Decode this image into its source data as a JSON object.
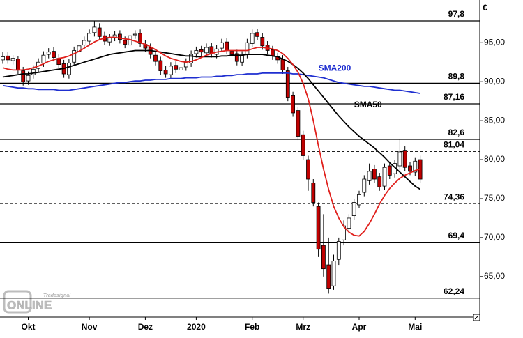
{
  "chart_data": {
    "type": "candlestick",
    "currency": "€",
    "logo": {
      "brand": "Tradesignal",
      "name": "ONLINE"
    },
    "categories": [
      null,
      null,
      null,
      null,
      null,
      "Okt",
      null,
      null,
      null,
      null,
      null,
      null,
      null,
      null,
      null,
      null,
      null,
      "Nov",
      null,
      null,
      null,
      null,
      null,
      null,
      null,
      null,
      null,
      null,
      "Dez",
      null,
      null,
      null,
      null,
      null,
      null,
      null,
      null,
      null,
      "2020",
      null,
      null,
      null,
      null,
      null,
      null,
      null,
      null,
      null,
      null,
      "Feb",
      null,
      null,
      null,
      null,
      null,
      null,
      null,
      null,
      null,
      "Mrz",
      null,
      null,
      null,
      null,
      null,
      null,
      null,
      null,
      null,
      null,
      "Apr",
      null,
      null,
      null,
      null,
      null,
      null,
      null,
      null,
      null,
      null,
      "Mai",
      null
    ],
    "candles": {
      "up_color": "#ffffff",
      "down_color": "#c00000",
      "open": [
        92.8,
        93.3,
        92.7,
        92.9,
        91.4,
        90.1,
        90.9,
        91.7,
        92.4,
        93.5,
        93.9,
        93.0,
        92.3,
        90.9,
        92.5,
        93.9,
        94.7,
        95.2,
        96.3,
        96.9,
        95.9,
        95.1,
        95.7,
        96.1,
        95.3,
        94.7,
        96.0,
        96.2,
        94.8,
        94.4,
        93.4,
        92.7,
        91.5,
        90.9,
        92.1,
        91.5,
        91.9,
        92.4,
        93.6,
        94.1,
        93.7,
        94.5,
        93.5,
        94.3,
        95.1,
        93.9,
        93.6,
        92.5,
        93.5,
        94.9,
        96.3,
        95.7,
        94.7,
        94.1,
        93.2,
        92.9,
        91.4,
        88.2,
        86.3,
        83.2,
        80.0,
        77.0,
        74.0,
        69.0,
        66.5,
        63.8,
        67.2,
        69.7,
        71.2,
        72.8,
        74.2,
        75.8,
        77.3,
        78.8,
        77.8,
        76.6,
        79.2,
        78.2,
        79.2,
        81.2,
        79.2,
        78.4,
        80.0
      ],
      "high": [
        93.8,
        93.8,
        93.4,
        93.3,
        91.9,
        91.3,
        92.1,
        93.0,
        93.9,
        94.3,
        94.4,
        93.5,
        92.8,
        92.9,
        94.5,
        95.1,
        95.8,
        96.7,
        97.8,
        97.5,
        96.4,
        96.1,
        96.5,
        96.6,
        95.8,
        96.4,
        96.6,
        96.7,
        95.3,
        94.9,
        93.9,
        93.2,
        92.0,
        92.5,
        92.6,
        92.3,
        93.0,
        94.0,
        94.5,
        94.6,
        94.9,
        95.0,
        94.7,
        95.5,
        95.6,
        94.4,
        94.1,
        93.9,
        95.5,
        96.7,
        96.8,
        96.2,
        95.2,
        94.6,
        93.7,
        93.4,
        91.9,
        88.7,
        86.8,
        83.7,
        80.5,
        77.5,
        74.5,
        73.0,
        70.0,
        67.8,
        70.0,
        72.2,
        73.0,
        75.0,
        76.0,
        78.0,
        79.5,
        79.3,
        78.3,
        79.5,
        79.7,
        80.0,
        82.6,
        81.7,
        79.7,
        80.3,
        80.5
      ],
      "low": [
        92.3,
        92.3,
        92.2,
        91.0,
        89.5,
        89.6,
        90.4,
        91.2,
        91.9,
        93.0,
        92.6,
        91.7,
        90.5,
        90.4,
        92.0,
        93.4,
        94.2,
        94.7,
        95.8,
        95.3,
        94.7,
        94.6,
        95.2,
        94.9,
        94.3,
        94.2,
        95.5,
        94.4,
        93.8,
        93.0,
        92.1,
        90.9,
        90.5,
        90.4,
        91.1,
        91.0,
        91.4,
        91.9,
        93.1,
        93.3,
        93.2,
        93.1,
        93.0,
        93.8,
        93.5,
        93.0,
        92.1,
        92.0,
        93.0,
        94.4,
        95.3,
        94.1,
        93.5,
        92.8,
        92.3,
        91.0,
        87.5,
        85.5,
        82.5,
        80.0,
        76.0,
        74.0,
        67.5,
        65.0,
        62.8,
        63.3,
        66.5,
        69.0,
        70.5,
        72.3,
        73.8,
        75.3,
        76.8,
        77.0,
        76.0,
        76.1,
        77.5,
        77.7,
        78.7,
        78.5,
        78.0,
        77.9,
        77.0
      ],
      "close": [
        93.2,
        92.8,
        93.0,
        91.5,
        90.0,
        90.8,
        91.6,
        92.5,
        93.4,
        93.8,
        93.1,
        92.2,
        91.0,
        92.4,
        94.0,
        94.6,
        95.3,
        96.2,
        97.0,
        95.8,
        95.2,
        95.6,
        96.0,
        95.4,
        94.8,
        95.9,
        96.1,
        94.9,
        94.3,
        93.5,
        92.6,
        91.4,
        91.0,
        92.0,
        91.6,
        91.8,
        92.5,
        93.5,
        94.0,
        93.8,
        94.4,
        93.6,
        94.2,
        95.0,
        94.0,
        93.5,
        92.6,
        93.4,
        95.0,
        96.2,
        95.8,
        94.6,
        94.0,
        93.3,
        92.8,
        91.5,
        88.0,
        86.0,
        83.0,
        80.5,
        77.5,
        74.5,
        68.5,
        66.0,
        63.5,
        67.0,
        69.5,
        71.5,
        72.5,
        74.5,
        75.5,
        77.5,
        78.5,
        77.5,
        76.5,
        79.0,
        78.0,
        79.5,
        81.0,
        79.0,
        78.5,
        79.8,
        77.5
      ]
    },
    "overlays": [
      {
        "name": "SMA200",
        "color": "#1f2fd0",
        "values": [
          89.5,
          89.4,
          89.3,
          89.2,
          89.2,
          89.1,
          89.1,
          89.0,
          89.0,
          89.0,
          89.0,
          88.9,
          88.9,
          88.9,
          89.0,
          89.1,
          89.2,
          89.3,
          89.4,
          89.5,
          89.6,
          89.7,
          89.8,
          89.9,
          89.9,
          90.0,
          90.1,
          90.1,
          90.2,
          90.2,
          90.3,
          90.3,
          90.3,
          90.4,
          90.4,
          90.4,
          90.5,
          90.5,
          90.5,
          90.6,
          90.6,
          90.6,
          90.7,
          90.7,
          90.8,
          90.8,
          90.9,
          90.9,
          91.0,
          91.0,
          91.0,
          91.1,
          91.1,
          91.1,
          91.1,
          91.1,
          91.1,
          91.0,
          91.0,
          90.9,
          90.8,
          90.7,
          90.6,
          90.5,
          90.3,
          90.1,
          89.9,
          89.8,
          89.7,
          89.6,
          89.5,
          89.4,
          89.4,
          89.3,
          89.2,
          89.1,
          89.0,
          88.9,
          88.9,
          88.8,
          88.7,
          88.6,
          88.5
        ]
      },
      {
        "name": "SMA50",
        "color": "#000000",
        "values": [
          90.6,
          90.7,
          90.8,
          90.9,
          91.0,
          91.0,
          91.1,
          91.2,
          91.3,
          91.4,
          91.5,
          91.6,
          91.7,
          91.9,
          92.1,
          92.3,
          92.5,
          92.7,
          92.9,
          93.1,
          93.3,
          93.5,
          93.6,
          93.7,
          93.8,
          93.9,
          94.0,
          94.0,
          94.0,
          94.0,
          93.9,
          93.8,
          93.7,
          93.6,
          93.5,
          93.4,
          93.3,
          93.3,
          93.2,
          93.2,
          93.2,
          93.2,
          93.2,
          93.3,
          93.3,
          93.4,
          93.4,
          93.4,
          93.5,
          93.5,
          93.5,
          93.5,
          93.4,
          93.3,
          93.2,
          92.9,
          92.6,
          92.2,
          91.7,
          91.1,
          90.4,
          89.6,
          88.8,
          88.0,
          87.2,
          86.4,
          85.6,
          84.9,
          84.2,
          83.6,
          83.0,
          82.5,
          82.0,
          81.5,
          80.9,
          80.3,
          79.6,
          79.0,
          78.4,
          77.8,
          77.2,
          76.6,
          76.2
        ]
      },
      {
        "color": "#e0201c",
        "values": [
          91.8,
          91.6,
          91.5,
          91.5,
          91.5,
          91.6,
          91.8,
          92.0,
          92.3,
          92.6,
          92.8,
          93.0,
          93.1,
          93.3,
          93.6,
          93.9,
          94.3,
          94.7,
          95.1,
          95.4,
          95.6,
          95.7,
          95.7,
          95.6,
          95.5,
          95.4,
          95.2,
          95.0,
          94.8,
          94.5,
          94.1,
          93.7,
          93.3,
          93.0,
          92.8,
          92.6,
          92.5,
          92.6,
          92.8,
          93.1,
          93.4,
          93.6,
          93.8,
          93.9,
          94.0,
          94.0,
          94.0,
          94.0,
          94.0,
          94.2,
          94.4,
          94.4,
          94.3,
          94.2,
          94.0,
          93.6,
          93.0,
          92.2,
          91.2,
          89.8,
          87.8,
          85.0,
          81.8,
          78.8,
          76.2,
          74.0,
          72.5,
          71.4,
          70.7,
          70.3,
          70.2,
          70.8,
          71.8,
          73.0,
          74.3,
          75.4,
          76.3,
          77.0,
          77.6,
          78.0,
          78.3,
          78.6,
          78.8
        ]
      }
    ],
    "levels": [
      {
        "value": 97.8,
        "label": "97,8",
        "style": "solid"
      },
      {
        "value": 89.8,
        "label": "89,8",
        "style": "solid"
      },
      {
        "value": 87.16,
        "label": "87,16",
        "style": "solid"
      },
      {
        "value": 82.6,
        "label": "82,6",
        "style": "solid"
      },
      {
        "value": 81.04,
        "label": "81,04",
        "style": "dashed"
      },
      {
        "value": 74.36,
        "label": "74,36",
        "style": "dashed"
      },
      {
        "value": 69.4,
        "label": "69,4",
        "style": "solid"
      },
      {
        "value": 62.24,
        "label": "62,24",
        "style": "solid"
      }
    ],
    "ylim": [
      59.8,
      100.3
    ],
    "yticks": [
      {
        "value": 95,
        "label": "95,00"
      },
      {
        "value": 90,
        "label": "90,00"
      },
      {
        "value": 85,
        "label": "85,00"
      },
      {
        "value": 80,
        "label": "80,00"
      },
      {
        "value": 75,
        "label": "75,00"
      },
      {
        "value": 70,
        "label": "70,00"
      },
      {
        "value": 65,
        "label": "65,00"
      }
    ]
  }
}
